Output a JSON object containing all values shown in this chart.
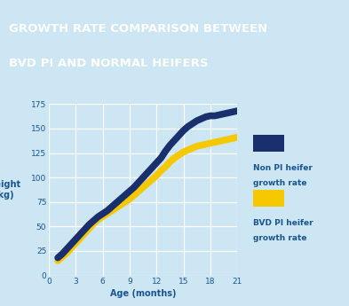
{
  "title_line1": "GROWTH RATE COMPARISON BETWEEN",
  "title_line2": "BVD PI AND NORMAL HEIFERS",
  "title_bg_color": "#2899cc",
  "title_text_color": "#ffffff",
  "background_color": "#cce6f4",
  "plot_bg_color": "#cce6f4",
  "xlabel": "Age (months)",
  "ylabel": "Weight\n(kg)",
  "xlim": [
    0,
    21
  ],
  "ylim": [
    0,
    175
  ],
  "xticks": [
    0,
    3,
    6,
    9,
    12,
    15,
    18,
    21
  ],
  "yticks": [
    0,
    25,
    50,
    75,
    100,
    125,
    150,
    175
  ],
  "ytick_labels": [
    "0",
    "25",
    "50",
    "75",
    "100",
    "125",
    "150",
    "175"
  ],
  "normal_color": "#1a2f6e",
  "bvd_color": "#f5c800",
  "text_color": "#1a5490",
  "legend_normal_label1": "Non PI heifer",
  "legend_normal_label2": "growth rate",
  "legend_bvd_label1": "BVD PI heifer",
  "legend_bvd_label2": "growth rate",
  "normal_x": [
    1,
    1.5,
    2,
    2.5,
    3,
    3.5,
    4,
    4.5,
    5,
    5.5,
    6,
    6.5,
    7,
    7.5,
    8,
    8.5,
    9,
    9.5,
    10,
    10.5,
    11,
    11.5,
    12,
    12.5,
    13,
    13.5,
    14,
    14.5,
    15,
    15.5,
    16,
    16.5,
    17,
    17.5,
    18,
    18.5,
    19,
    19.5,
    20,
    20.5,
    21
  ],
  "normal_y": [
    18,
    22,
    27,
    32,
    37,
    42,
    47,
    52,
    56,
    60,
    63,
    66,
    70,
    74,
    78,
    82,
    86,
    90,
    95,
    100,
    105,
    110,
    115,
    120,
    127,
    133,
    138,
    143,
    148,
    152,
    155,
    158,
    160,
    162,
    163,
    163,
    164,
    165,
    166,
    167,
    168
  ],
  "bvd_x": [
    1,
    1.5,
    2,
    2.5,
    3,
    3.5,
    4,
    4.5,
    5,
    5.5,
    6,
    6.5,
    7,
    7.5,
    8,
    8.5,
    9,
    9.5,
    10,
    10.5,
    11,
    11.5,
    12,
    12.5,
    13,
    13.5,
    14,
    14.5,
    15,
    15.5,
    16,
    16.5,
    17,
    17.5,
    18,
    18.5,
    19,
    19.5,
    20,
    20.5,
    21
  ],
  "bvd_y": [
    15,
    19,
    23,
    28,
    33,
    38,
    43,
    48,
    53,
    57,
    60,
    63,
    66,
    69,
    72,
    75,
    78,
    82,
    86,
    90,
    94,
    98,
    102,
    107,
    111,
    116,
    120,
    123,
    126,
    128,
    130,
    132,
    133,
    134,
    135,
    136,
    137,
    138,
    139,
    140,
    141
  ]
}
